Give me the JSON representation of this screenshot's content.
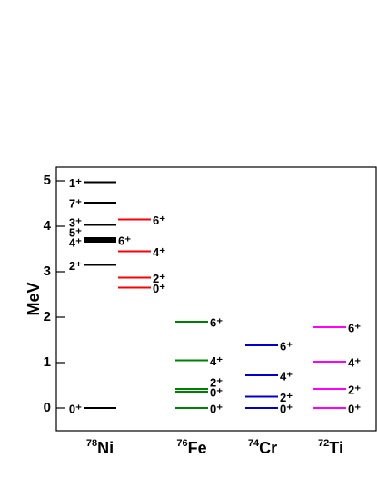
{
  "chart_data": {
    "type": "level-scheme",
    "ylabel": "MeV",
    "ylim": [
      -0.5,
      5.3
    ],
    "yticks": [
      0,
      1,
      2,
      3,
      4,
      5
    ],
    "nuclei": [
      {
        "mass": "78",
        "element": "Ni",
        "schemes": [
          {
            "color": "#000000",
            "label_side": "left",
            "levels": [
              0,
              3.15,
              3.66,
              3.7,
              3.74,
              4.03,
              4.52,
              4.97
            ],
            "labels": [
              "0⁺",
              "2⁺",
              "4⁺",
              "6⁺",
              "5⁺",
              "3⁺",
              "7⁺",
              "1⁺"
            ],
            "label_sides": [
              "left",
              "left",
              "left",
              "right",
              "left",
              "left",
              "left",
              "left"
            ]
          },
          {
            "color": "#ff0000",
            "label_side": "right",
            "levels": [
              2.65,
              2.87,
              3.45,
              4.15
            ],
            "labels": [
              "0⁺",
              "2⁺",
              "4⁺",
              "6⁺"
            ],
            "label_sides": [
              "right",
              "right",
              "right",
              "right"
            ]
          }
        ]
      },
      {
        "mass": "76",
        "element": "Fe",
        "schemes": [
          {
            "color": "#008000",
            "label_side": "right",
            "levels": [
              0,
              0.36,
              0.42,
              1.05,
              1.9
            ],
            "labels": [
              "0⁺",
              "0⁺",
              "2⁺",
              "4⁺",
              "6⁺"
            ],
            "label_sides": [
              "right",
              "right",
              "right",
              "right",
              "right"
            ]
          }
        ]
      },
      {
        "mass": "74",
        "element": "Cr",
        "schemes": [
          {
            "color": "#0000cc",
            "label_side": "right",
            "levels": [
              0,
              0.25,
              0.72,
              1.38
            ],
            "labels": [
              "0⁺",
              "2⁺",
              "4⁺",
              "6⁺"
            ],
            "label_sides": [
              "right",
              "right",
              "right",
              "right"
            ]
          }
        ]
      },
      {
        "mass": "72",
        "element": "Ti",
        "schemes": [
          {
            "color": "#ff00ff",
            "label_side": "right",
            "levels": [
              0,
              0.42,
              1.02,
              1.78
            ],
            "labels": [
              "0⁺",
              "2⁺",
              "4⁺",
              "6⁺"
            ],
            "label_sides": [
              "right",
              "right",
              "right",
              "right"
            ]
          }
        ]
      }
    ]
  }
}
